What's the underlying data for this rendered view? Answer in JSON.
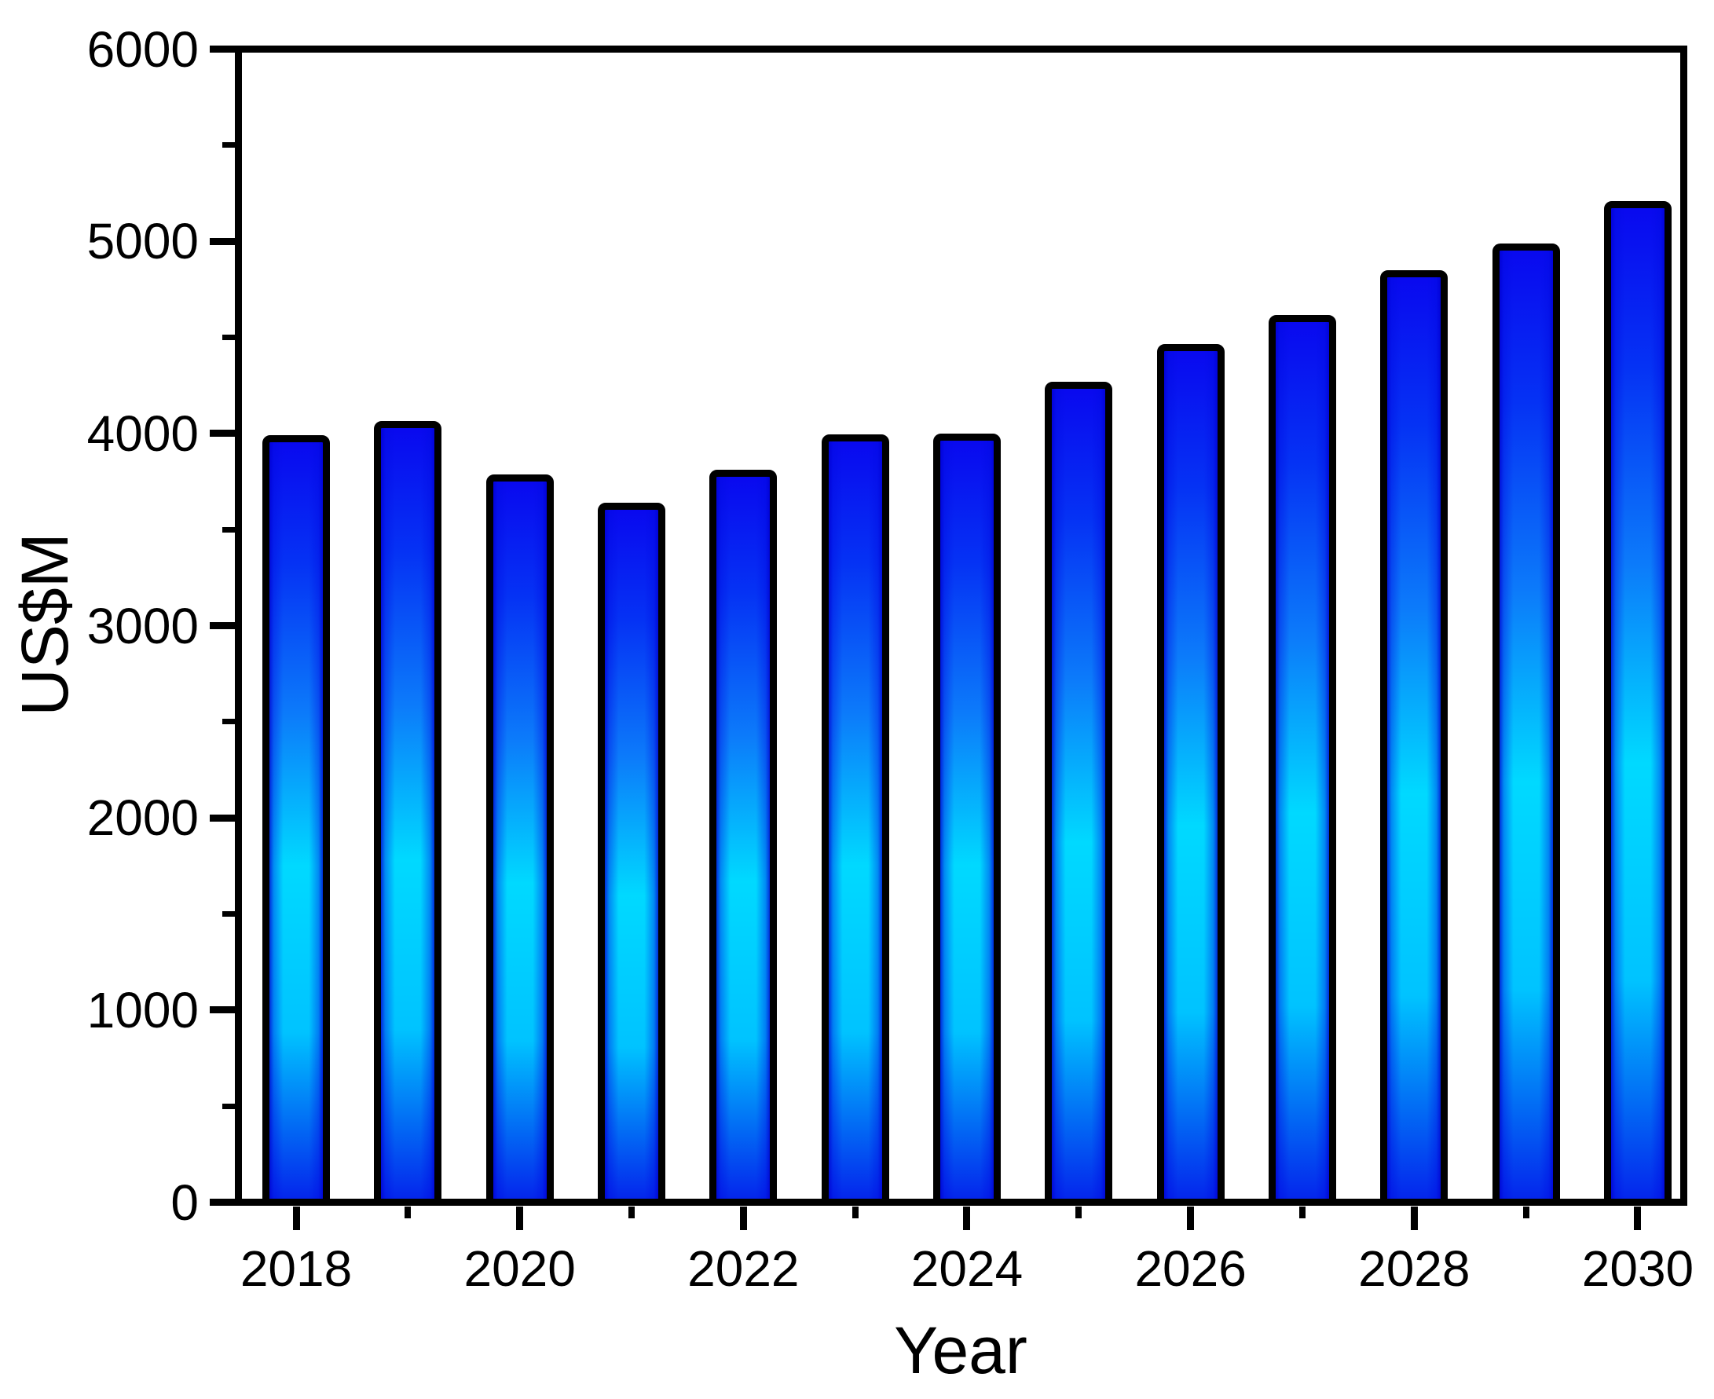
{
  "chart_data": {
    "type": "bar",
    "title": "",
    "xlabel": "Year",
    "ylabel": "US$M",
    "categories": [
      2018,
      2019,
      2020,
      2021,
      2022,
      2023,
      2024,
      2025,
      2026,
      2027,
      2028,
      2029,
      2030
    ],
    "values": [
      3990,
      4065,
      3785,
      3640,
      3810,
      3995,
      4000,
      4270,
      4465,
      4615,
      4850,
      4990,
      5210
    ],
    "ylim": [
      0,
      6000
    ],
    "y_major_ticks": [
      0,
      1000,
      2000,
      3000,
      4000,
      5000,
      6000
    ],
    "y_minor_ticks": [
      500,
      1500,
      2500,
      3500,
      4500,
      5500
    ],
    "x_ticks": [
      2018,
      2019,
      2020,
      2021,
      2022,
      2023,
      2024,
      2025,
      2026,
      2027,
      2028,
      2029,
      2030
    ],
    "x_labeled_ticks": [
      2018,
      2020,
      2022,
      2024,
      2026,
      2028,
      2030
    ],
    "grid": false,
    "legend": null,
    "frame": "full-box",
    "bar_style": "glossy-gradient-with-black-border"
  },
  "colors": {
    "background": "#FFFFFF",
    "axis": "#000000",
    "text": "#000000",
    "bar_border": "#000000",
    "bar_gradient_top": "#0909EF",
    "bar_gradient_upper": "#0532F4",
    "bar_gradient_mid": "#0C7BFA",
    "bar_gradient_bright": "#00D9FF",
    "bar_gradient_lower": "#00C3FF",
    "bar_gradient_bottom": "#0426EC",
    "bar_edge_shade": "rgba(0,0,210,0.78)"
  }
}
